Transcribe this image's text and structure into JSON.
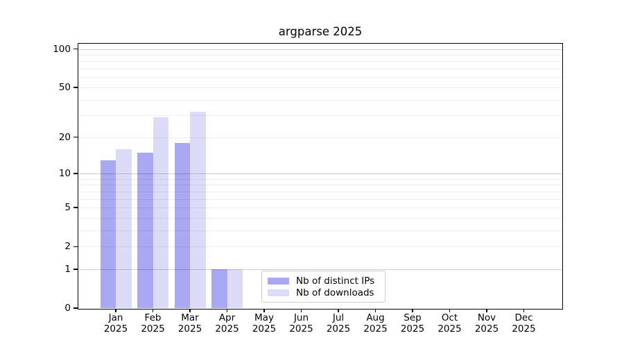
{
  "figure": {
    "background": "#ffffff",
    "text_color": "#000000"
  },
  "chart_data": {
    "type": "bar",
    "title": "argparse 2025",
    "yscale": "log1p",
    "ylim": [
      0,
      110
    ],
    "grid": "both",
    "x_ticks": [
      {
        "month": "Jan",
        "year": "2025"
      },
      {
        "month": "Feb",
        "year": "2025"
      },
      {
        "month": "Mar",
        "year": "2025"
      },
      {
        "month": "Apr",
        "year": "2025"
      },
      {
        "month": "May",
        "year": "2025"
      },
      {
        "month": "Jun",
        "year": "2025"
      },
      {
        "month": "Jul",
        "year": "2025"
      },
      {
        "month": "Aug",
        "year": "2025"
      },
      {
        "month": "Sep",
        "year": "2025"
      },
      {
        "month": "Oct",
        "year": "2025"
      },
      {
        "month": "Nov",
        "year": "2025"
      },
      {
        "month": "Dec",
        "year": "2025"
      }
    ],
    "y_ticks": [
      0,
      1,
      2,
      5,
      10,
      20,
      50,
      100
    ],
    "gridlines": {
      "major": [
        1,
        10,
        100
      ],
      "minor": [
        2,
        3,
        4,
        5,
        6,
        7,
        8,
        9,
        20,
        30,
        40,
        50,
        60,
        70,
        80,
        90
      ]
    },
    "series": [
      {
        "name": "Nb of distinct IPs",
        "key": "distinct-ips",
        "color": "#a8a8f3",
        "values": [
          13,
          15,
          18,
          1,
          0,
          0,
          0,
          0,
          0,
          0,
          0,
          0
        ]
      },
      {
        "name": "Nb of downloads",
        "key": "downloads",
        "color": "#dcdcf9",
        "values": [
          16,
          29,
          32,
          1,
          0,
          0,
          0,
          0,
          0,
          0,
          0,
          0
        ]
      }
    ],
    "legend": {
      "position": "lower center"
    }
  },
  "colors": {
    "grid_minor": "rgba(0,0,0,0.08)",
    "grid_major": "rgba(0,0,0,0.20)",
    "spine": "#000000",
    "legend_border": "#cccccc",
    "legend_background": "#ffffff"
  }
}
